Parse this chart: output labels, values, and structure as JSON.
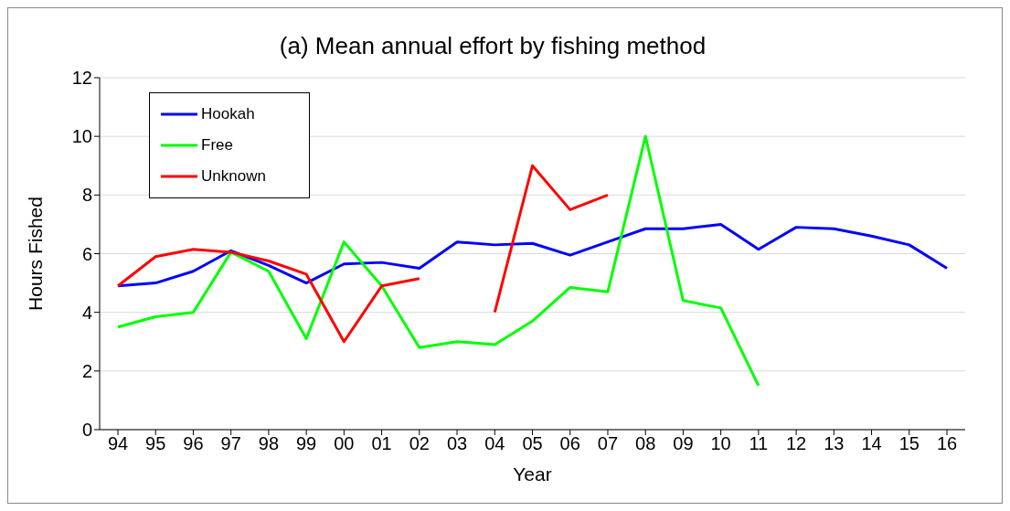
{
  "chart_data": {
    "type": "line",
    "title": "(a) Mean annual effort by fishing method",
    "xlabel": "Year",
    "ylabel": "Hours Fished",
    "categories": [
      "94",
      "95",
      "96",
      "97",
      "98",
      "99",
      "00",
      "01",
      "02",
      "03",
      "04",
      "05",
      "06",
      "07",
      "08",
      "09",
      "10",
      "11",
      "12",
      "13",
      "14",
      "15",
      "16"
    ],
    "series": [
      {
        "name": "Hookah",
        "color": "#0000ff",
        "values": [
          4.9,
          5.0,
          5.4,
          6.1,
          5.6,
          5.0,
          5.65,
          5.7,
          5.5,
          6.4,
          6.3,
          6.35,
          5.95,
          6.4,
          6.85,
          6.85,
          7.0,
          6.15,
          6.9,
          6.85,
          6.6,
          6.3,
          5.5
        ]
      },
      {
        "name": "Free",
        "color": "#00ff00",
        "values": [
          3.5,
          3.85,
          4.0,
          6.05,
          5.4,
          3.1,
          6.4,
          4.9,
          2.8,
          3.0,
          2.9,
          3.7,
          4.85,
          4.7,
          10.0,
          4.4,
          4.15,
          1.5,
          null,
          null,
          null,
          null,
          null
        ]
      },
      {
        "name": "Unknown",
        "color": "#ff0000",
        "values": [
          4.9,
          5.9,
          6.15,
          6.05,
          5.75,
          5.3,
          3.0,
          4.9,
          5.15,
          null,
          4.0,
          9.0,
          7.5,
          8.0,
          null,
          null,
          null,
          null,
          null,
          null,
          null,
          null,
          null
        ]
      }
    ],
    "ylim": [
      0,
      12
    ],
    "yticks": [
      0,
      2,
      4,
      6,
      8,
      10,
      12
    ],
    "grid": "y",
    "legend": "top left",
    "marker": "none",
    "line_style": "solid"
  }
}
